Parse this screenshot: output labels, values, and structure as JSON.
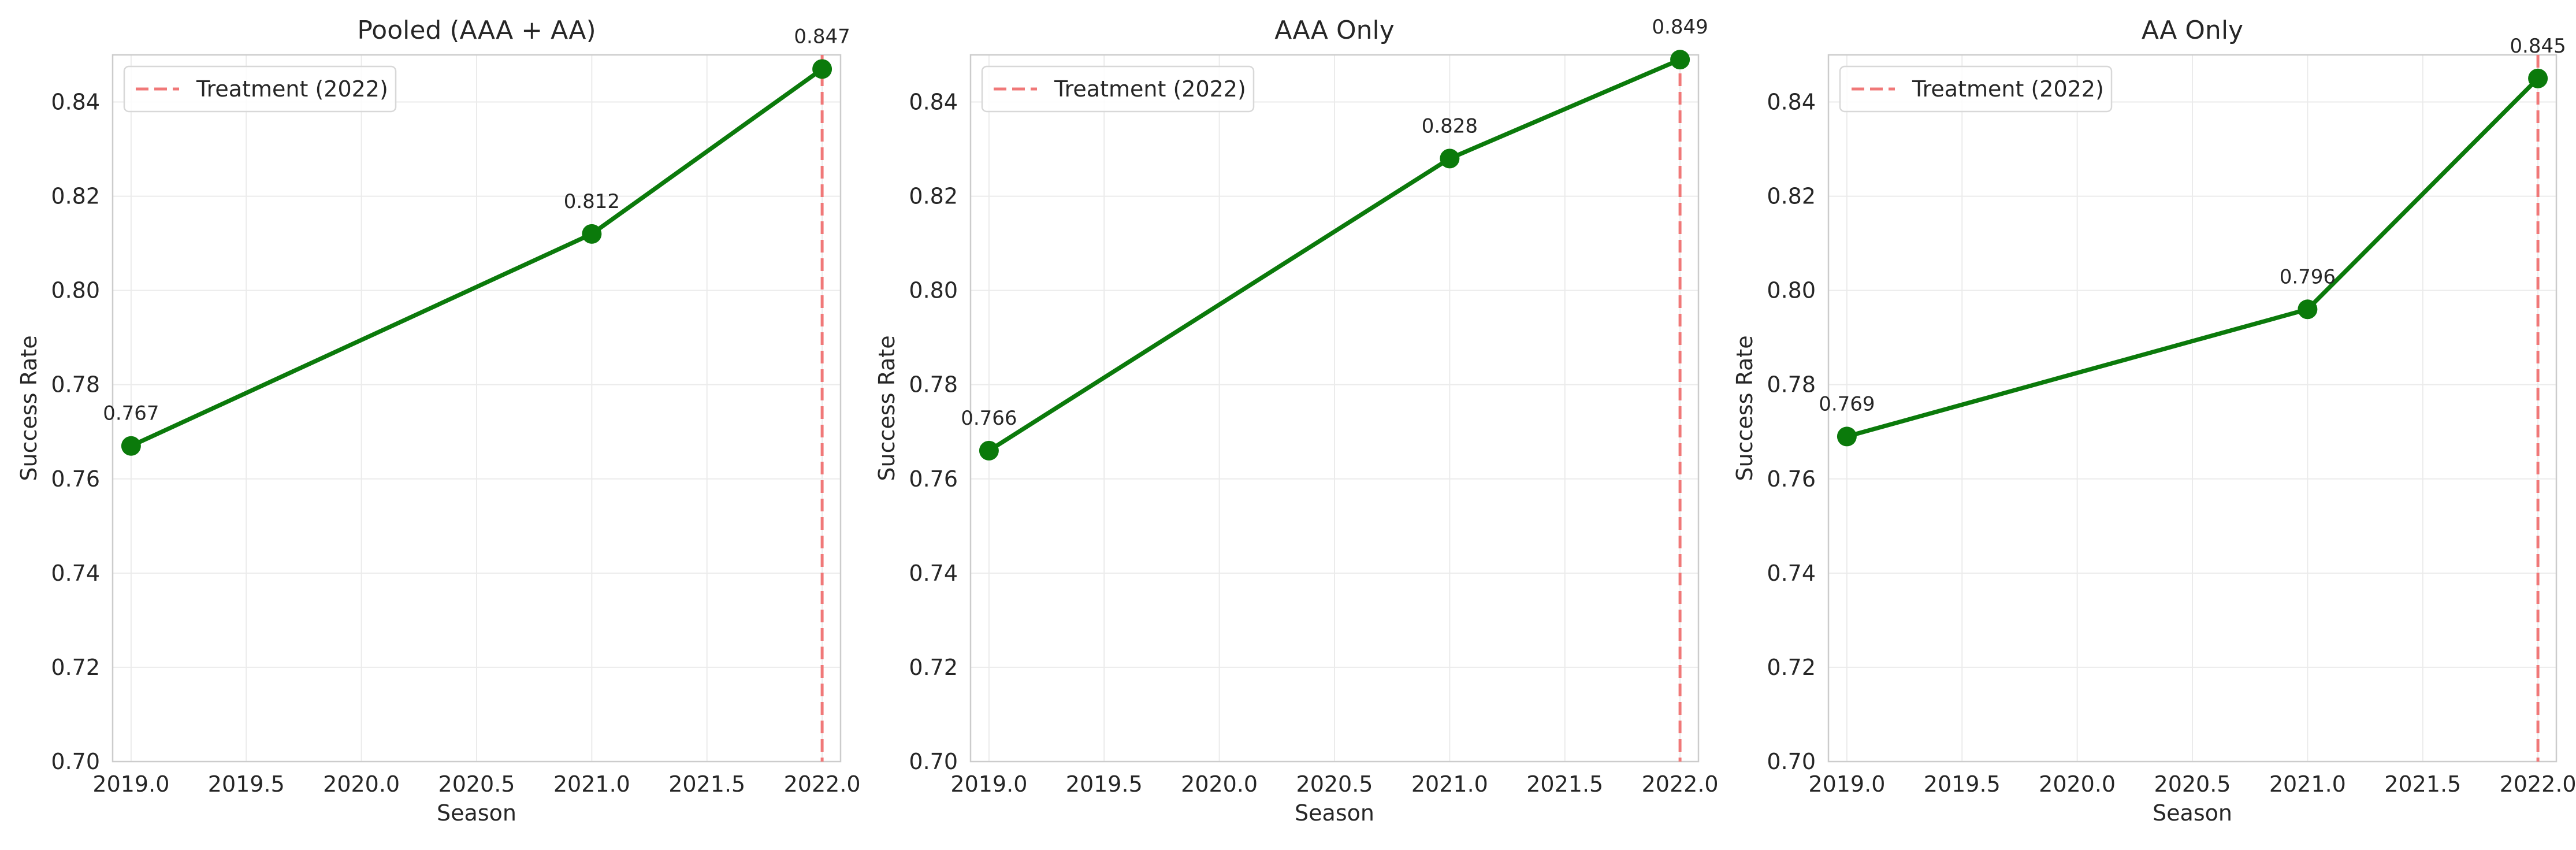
{
  "colors": {
    "line": "#0b7a0b",
    "treatment": "#f07878",
    "grid": "#ebebeb",
    "spine": "#cccccc",
    "text": "#262626"
  },
  "chart_data": [
    {
      "type": "line",
      "title": "Pooled (AAA + AA)",
      "xlabel": "Season",
      "ylabel": "Success Rate",
      "xlim": [
        2018.92,
        2022.08
      ],
      "ylim": [
        0.7,
        0.85
      ],
      "xticks": [
        2019.0,
        2019.5,
        2020.0,
        2020.5,
        2021.0,
        2021.5,
        2022.0
      ],
      "xtick_labels": [
        "2019.0",
        "2019.5",
        "2020.0",
        "2020.5",
        "2021.0",
        "2021.5",
        "2022.0"
      ],
      "yticks": [
        0.7,
        0.72,
        0.74,
        0.76,
        0.78,
        0.8,
        0.82,
        0.84
      ],
      "ytick_labels": [
        "0.70",
        "0.72",
        "0.74",
        "0.76",
        "0.78",
        "0.80",
        "0.82",
        "0.84"
      ],
      "x": [
        2019,
        2021,
        2022
      ],
      "y": [
        0.767,
        0.812,
        0.847
      ],
      "data_labels": [
        "0.767",
        "0.812",
        "0.847"
      ],
      "treatment_x": 2022,
      "legend": {
        "label": "Treatment (2022)",
        "placement": "upper-left"
      },
      "grid": true
    },
    {
      "type": "line",
      "title": "AAA Only",
      "xlabel": "Season",
      "ylabel": "Success Rate",
      "xlim": [
        2018.92,
        2022.08
      ],
      "ylim": [
        0.7,
        0.85
      ],
      "xticks": [
        2019.0,
        2019.5,
        2020.0,
        2020.5,
        2021.0,
        2021.5,
        2022.0
      ],
      "xtick_labels": [
        "2019.0",
        "2019.5",
        "2020.0",
        "2020.5",
        "2021.0",
        "2021.5",
        "2022.0"
      ],
      "yticks": [
        0.7,
        0.72,
        0.74,
        0.76,
        0.78,
        0.8,
        0.82,
        0.84
      ],
      "ytick_labels": [
        "0.70",
        "0.72",
        "0.74",
        "0.76",
        "0.78",
        "0.80",
        "0.82",
        "0.84"
      ],
      "x": [
        2019,
        2021,
        2022
      ],
      "y": [
        0.766,
        0.828,
        0.849
      ],
      "data_labels": [
        "0.766",
        "0.828",
        "0.849"
      ],
      "treatment_x": 2022,
      "legend": {
        "label": "Treatment (2022)",
        "placement": "upper-left"
      },
      "grid": true
    },
    {
      "type": "line",
      "title": "AA Only",
      "xlabel": "Season",
      "ylabel": "Success Rate",
      "xlim": [
        2018.92,
        2022.08
      ],
      "ylim": [
        0.7,
        0.85
      ],
      "xticks": [
        2019.0,
        2019.5,
        2020.0,
        2020.5,
        2021.0,
        2021.5,
        2022.0
      ],
      "xtick_labels": [
        "2019.0",
        "2019.5",
        "2020.0",
        "2020.5",
        "2021.0",
        "2021.5",
        "2022.0"
      ],
      "yticks": [
        0.7,
        0.72,
        0.74,
        0.76,
        0.78,
        0.8,
        0.82,
        0.84
      ],
      "ytick_labels": [
        "0.70",
        "0.72",
        "0.74",
        "0.76",
        "0.78",
        "0.80",
        "0.82",
        "0.84"
      ],
      "x": [
        2019,
        2021,
        2022
      ],
      "y": [
        0.769,
        0.796,
        0.845
      ],
      "data_labels": [
        "0.769",
        "0.796",
        "0.845"
      ],
      "treatment_x": 2022,
      "legend": {
        "label": "Treatment (2022)",
        "placement": "upper-left"
      },
      "grid": true
    }
  ]
}
